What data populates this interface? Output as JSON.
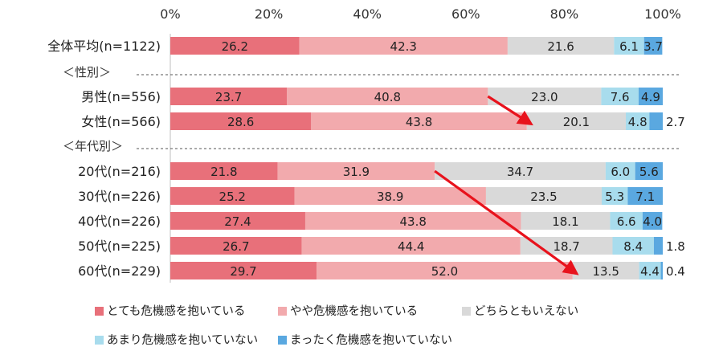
{
  "chart_data": {
    "type": "bar",
    "orientation": "horizontal",
    "stacked": true,
    "x_tick_labels": [
      "0%",
      "20%",
      "40%",
      "60%",
      "80%",
      "100%"
    ],
    "xlim": [
      0,
      100
    ],
    "grid": false,
    "legend_position": "bottom",
    "rows": [
      {
        "label": "全体平均(n=1122)",
        "values": [
          26.2,
          42.3,
          21.6,
          6.1,
          3.7
        ]
      },
      {
        "group_header": "＜性別＞"
      },
      {
        "label": "男性(n=556)",
        "values": [
          23.7,
          40.8,
          23.0,
          7.6,
          4.9
        ]
      },
      {
        "label": "女性(n=566)",
        "values": [
          28.6,
          43.8,
          20.1,
          4.8,
          2.7
        ]
      },
      {
        "group_header": "＜年代別＞"
      },
      {
        "label": "20代(n=216)",
        "values": [
          21.8,
          31.9,
          34.7,
          6.0,
          5.6
        ]
      },
      {
        "label": "30代(n=226)",
        "values": [
          25.2,
          38.9,
          23.5,
          5.3,
          7.1
        ]
      },
      {
        "label": "40代(n=226)",
        "values": [
          27.4,
          43.8,
          18.1,
          6.6,
          4.0
        ]
      },
      {
        "label": "50代(n=225)",
        "values": [
          26.7,
          44.4,
          18.7,
          8.4,
          1.8
        ]
      },
      {
        "label": "60代(n=229)",
        "values": [
          29.7,
          52.0,
          13.5,
          4.4,
          0.4
        ]
      }
    ],
    "series": [
      {
        "name": "とても危機感を抱いている",
        "color": "#e8707a"
      },
      {
        "name": "やや危機感を抱いている",
        "color": "#f2aaad"
      },
      {
        "name": "どちらともいえない",
        "color": "#d9d9d9"
      },
      {
        "name": "あまり危機感を抱いていない",
        "color": "#a8dced"
      },
      {
        "name": "まったく危機感を抱いていない",
        "color": "#5aa8e0"
      }
    ],
    "annotations": [
      {
        "type": "arrow",
        "color": "#e8121c",
        "from": {
          "row": 2,
          "x": 64.5
        },
        "to": {
          "row": 3,
          "x": 72.4
        }
      },
      {
        "type": "arrow",
        "color": "#e8121c",
        "from": {
          "row": 5,
          "x": 53.7
        },
        "to": {
          "row": 9,
          "x": 81.7
        }
      }
    ]
  }
}
